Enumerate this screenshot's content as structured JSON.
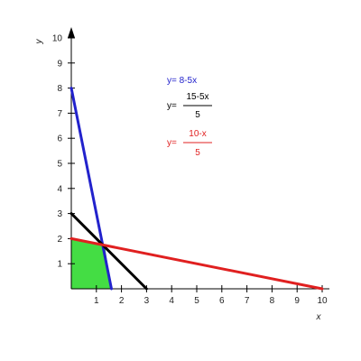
{
  "chart_data": {
    "type": "line",
    "xlabel": "x",
    "ylabel": "y",
    "xlim": [
      0,
      10
    ],
    "ylim": [
      0,
      10
    ],
    "x_ticks": [
      1,
      2,
      3,
      4,
      5,
      6,
      7,
      8,
      9,
      10
    ],
    "y_ticks": [
      1,
      2,
      3,
      4,
      5,
      6,
      7,
      8,
      9,
      10
    ],
    "grid": false,
    "series": [
      {
        "name": "y= 8-5x",
        "color": "#2222cc",
        "points": [
          [
            0,
            8
          ],
          [
            1.6,
            0
          ]
        ]
      },
      {
        "name": "y= (15-5x)/5",
        "color": "#000000",
        "points": [
          [
            0,
            3
          ],
          [
            3,
            0
          ]
        ]
      },
      {
        "name": "y= (10-x)/5",
        "color": "#e02020",
        "points": [
          [
            0,
            2
          ],
          [
            10,
            0
          ]
        ]
      }
    ],
    "feasible_region": {
      "color": "#44dd44",
      "vertices": [
        [
          0,
          0
        ],
        [
          0,
          2
        ],
        [
          1.333,
          1.733
        ],
        [
          1.6,
          0
        ]
      ]
    },
    "equations": {
      "blue": "y= 8-5x",
      "black_prefix": "y=",
      "black_num": "15-5x",
      "black_den": "5",
      "red_prefix": "y=",
      "red_num": "10-x",
      "red_den": "5"
    }
  }
}
